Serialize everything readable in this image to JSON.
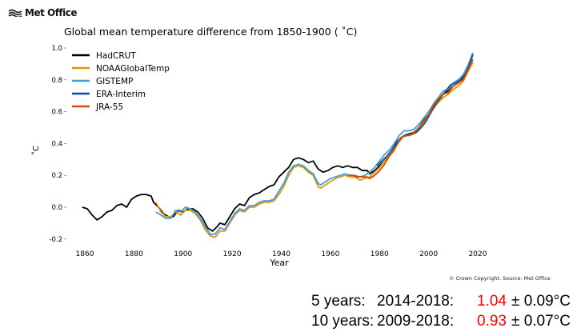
{
  "brand": {
    "name": "Met Office",
    "icon": "met-office-waves-logo"
  },
  "copyright": "© Crown Copyright. Source: Met Office",
  "summary": [
    {
      "label": "5 years:",
      "period": "2014-2018:",
      "value": "1.04",
      "uncertainty": "± 0.09°C"
    },
    {
      "label": "10 years:",
      "period": "2009-2018:",
      "value": "0.93",
      "uncertainty": "± 0.07°C"
    }
  ],
  "colors": {
    "highlight": "#ff0000"
  },
  "chart_data": {
    "type": "line",
    "title": "Global mean temperature difference from 1850-1900 ( ˚C)",
    "xlabel": "Year",
    "ylabel": "˚C",
    "xlim": [
      1856,
      2022
    ],
    "ylim": [
      -0.23,
      1.02
    ],
    "xticks": [
      1860,
      1880,
      1900,
      1920,
      1940,
      1960,
      1980,
      2000,
      2020
    ],
    "yticks": [
      -0.2,
      0.0,
      0.2,
      0.4,
      0.6,
      0.8,
      1.0
    ],
    "grid": false,
    "legend": "top-left",
    "series": [
      {
        "name": "HadCRUT",
        "color": "#000000",
        "x": [
          1859,
          1861,
          1863,
          1865,
          1867,
          1869,
          1871,
          1873,
          1875,
          1877,
          1879,
          1881,
          1883,
          1885,
          1887,
          1888,
          1890,
          1892,
          1894,
          1896,
          1898,
          1900,
          1902,
          1904,
          1906,
          1908,
          1910,
          1912,
          1914,
          1915,
          1917,
          1919,
          1921,
          1923,
          1925,
          1927,
          1929,
          1931,
          1933,
          1935,
          1937,
          1939,
          1941,
          1943,
          1945,
          1947,
          1949,
          1951,
          1953,
          1955,
          1957,
          1959,
          1961,
          1963,
          1965,
          1967,
          1969,
          1971,
          1973,
          1975,
          1976,
          1978,
          1980,
          1982,
          1984,
          1986,
          1988,
          1990,
          1992,
          1994,
          1996,
          1998,
          2000,
          2002,
          2004,
          2006,
          2008,
          2010,
          2012,
          2014,
          2016,
          2018
        ],
        "y": [
          0.0,
          -0.01,
          -0.05,
          -0.08,
          -0.06,
          -0.03,
          -0.02,
          0.01,
          0.02,
          0.0,
          0.05,
          0.07,
          0.08,
          0.08,
          0.07,
          0.03,
          0.0,
          -0.04,
          -0.06,
          -0.06,
          -0.02,
          -0.03,
          -0.01,
          -0.01,
          -0.03,
          -0.07,
          -0.13,
          -0.15,
          -0.12,
          -0.1,
          -0.11,
          -0.06,
          -0.01,
          0.02,
          0.01,
          0.06,
          0.08,
          0.09,
          0.11,
          0.13,
          0.14,
          0.19,
          0.22,
          0.25,
          0.3,
          0.31,
          0.3,
          0.28,
          0.29,
          0.24,
          0.22,
          0.23,
          0.25,
          0.26,
          0.25,
          0.26,
          0.25,
          0.25,
          0.23,
          0.23,
          0.21,
          0.23,
          0.26,
          0.29,
          0.33,
          0.37,
          0.42,
          0.45,
          0.46,
          0.47,
          0.5,
          0.54,
          0.58,
          0.63,
          0.67,
          0.71,
          0.73,
          0.76,
          0.78,
          0.81,
          0.86,
          0.91
        ]
      },
      {
        "name": "NOAAGlobalTemp",
        "color": "#e69500",
        "x": [
          1889,
          1891,
          1893,
          1895,
          1897,
          1899,
          1901,
          1903,
          1905,
          1907,
          1909,
          1911,
          1913,
          1915,
          1917,
          1919,
          1921,
          1923,
          1925,
          1927,
          1929,
          1931,
          1933,
          1935,
          1937,
          1939,
          1941,
          1943,
          1945,
          1947,
          1949,
          1951,
          1953,
          1955,
          1956,
          1958,
          1960,
          1962,
          1964,
          1966,
          1968,
          1970,
          1972,
          1974,
          1976,
          1978,
          1980,
          1982,
          1984,
          1986,
          1988,
          1990,
          1992,
          1994,
          1996,
          1998,
          2000,
          2002,
          2004,
          2006,
          2008,
          2010,
          2012,
          2014,
          2016,
          2018
        ],
        "y": [
          0.03,
          -0.03,
          -0.06,
          -0.06,
          -0.03,
          -0.05,
          -0.02,
          -0.02,
          -0.04,
          -0.08,
          -0.14,
          -0.18,
          -0.19,
          -0.15,
          -0.15,
          -0.1,
          -0.05,
          -0.02,
          -0.03,
          0.0,
          0.0,
          0.02,
          0.03,
          0.03,
          0.04,
          0.08,
          0.13,
          0.2,
          0.25,
          0.26,
          0.25,
          0.22,
          0.2,
          0.13,
          0.12,
          0.14,
          0.16,
          0.18,
          0.19,
          0.2,
          0.19,
          0.19,
          0.17,
          0.18,
          0.19,
          0.22,
          0.25,
          0.29,
          0.33,
          0.37,
          0.41,
          0.45,
          0.45,
          0.46,
          0.49,
          0.53,
          0.57,
          0.62,
          0.66,
          0.69,
          0.71,
          0.74,
          0.76,
          0.79,
          0.85,
          0.91
        ]
      },
      {
        "name": "GISTEMP",
        "color": "#3a9ee0",
        "x": [
          1889,
          1891,
          1893,
          1895,
          1897,
          1899,
          1901,
          1903,
          1905,
          1907,
          1909,
          1911,
          1913,
          1915,
          1917,
          1919,
          1921,
          1923,
          1925,
          1927,
          1929,
          1931,
          1933,
          1935,
          1937,
          1939,
          1941,
          1943,
          1945,
          1947,
          1949,
          1951,
          1953,
          1955,
          1956,
          1958,
          1960,
          1962,
          1964,
          1966,
          1968,
          1970,
          1972,
          1974,
          1976,
          1978,
          1980,
          1982,
          1984,
          1986,
          1988,
          1990,
          1992,
          1994,
          1996,
          1998,
          2000,
          2002,
          2004,
          2006,
          2008,
          2010,
          2012,
          2014,
          2016,
          2018
        ],
        "y": [
          -0.03,
          -0.05,
          -0.07,
          -0.07,
          -0.02,
          -0.03,
          0.0,
          -0.01,
          -0.03,
          -0.07,
          -0.12,
          -0.17,
          -0.17,
          -0.13,
          -0.14,
          -0.09,
          -0.04,
          -0.01,
          -0.02,
          0.01,
          0.01,
          0.03,
          0.04,
          0.04,
          0.05,
          0.1,
          0.15,
          0.22,
          0.26,
          0.27,
          0.26,
          0.23,
          0.21,
          0.15,
          0.14,
          0.16,
          0.18,
          0.19,
          0.2,
          0.21,
          0.2,
          0.2,
          0.19,
          0.2,
          0.22,
          0.25,
          0.29,
          0.33,
          0.36,
          0.4,
          0.45,
          0.48,
          0.48,
          0.49,
          0.52,
          0.56,
          0.6,
          0.65,
          0.69,
          0.73,
          0.74,
          0.78,
          0.8,
          0.83,
          0.89,
          0.97
        ]
      },
      {
        "name": "ERA-Interim",
        "color": "#0a4f9c",
        "x": [
          1979,
          1981,
          1983,
          1985,
          1987,
          1989,
          1991,
          1993,
          1995,
          1997,
          1999,
          2001,
          2003,
          2005,
          2007,
          2009,
          2011,
          2013,
          2015,
          2017,
          2018
        ],
        "y": [
          0.26,
          0.29,
          0.32,
          0.36,
          0.41,
          0.44,
          0.45,
          0.46,
          0.47,
          0.5,
          0.54,
          0.6,
          0.65,
          0.69,
          0.73,
          0.77,
          0.78,
          0.8,
          0.84,
          0.91,
          0.96
        ]
      },
      {
        "name": "JRA-55",
        "color": "#d04a00",
        "x": [
          1967,
          1969,
          1971,
          1973,
          1975,
          1976,
          1978,
          1980,
          1982,
          1984,
          1986,
          1988,
          1990,
          1992,
          1994,
          1996,
          1998,
          2000,
          2002,
          2004,
          2006,
          2008,
          2010,
          2012,
          2014,
          2016,
          2018
        ],
        "y": [
          0.2,
          0.2,
          0.19,
          0.19,
          0.19,
          0.18,
          0.2,
          0.23,
          0.27,
          0.32,
          0.36,
          0.42,
          0.45,
          0.45,
          0.47,
          0.5,
          0.55,
          0.58,
          0.64,
          0.68,
          0.71,
          0.72,
          0.76,
          0.78,
          0.8,
          0.86,
          0.93
        ]
      }
    ]
  }
}
